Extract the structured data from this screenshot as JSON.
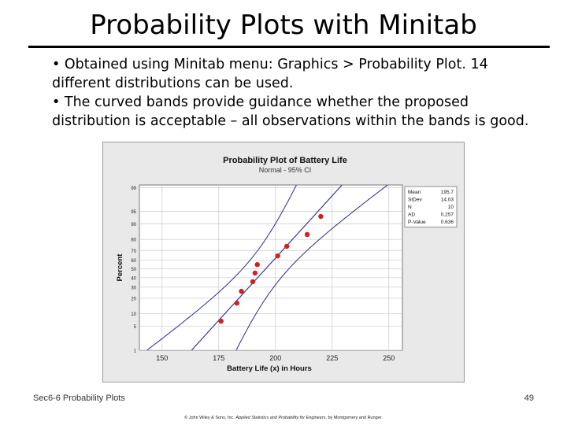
{
  "slide": {
    "title": "Probability Plots with Minitab",
    "bullets": [
      "• Obtained using Minitab menu:  Graphics > Probability Plot.  14 different distributions can be used.",
      "• The curved bands provide guidance whether the proposed distribution is acceptable – all observations within the bands is good."
    ],
    "footer_left": "Sec6-6 Probability Plots",
    "page_number": "49",
    "copyright_prefix": "© John Wiley & Sons, Inc.  ",
    "copyright_book": "Applied Statistics and Probability for Engineers",
    "copyright_suffix": ", by Montgomery and Runger."
  },
  "chart_data": {
    "type": "scatter",
    "title": "Probability Plot of Battery Life",
    "subtitle": "Normal - 95% CI",
    "xlabel": "Battery Life (x) in Hours",
    "ylabel": "Percent",
    "xlim": [
      140,
      256
    ],
    "x_ticks": [
      150,
      175,
      200,
      225,
      250
    ],
    "y_ticks": [
      1,
      5,
      10,
      20,
      30,
      40,
      50,
      60,
      70,
      80,
      90,
      95,
      99
    ],
    "y_scale": "normal-probability",
    "points": [
      {
        "x": 176,
        "y": 6.7
      },
      {
        "x": 183,
        "y": 16.3
      },
      {
        "x": 185,
        "y": 26
      },
      {
        "x": 190,
        "y": 35.6
      },
      {
        "x": 191,
        "y": 45.2
      },
      {
        "x": 192,
        "y": 54.8
      },
      {
        "x": 201,
        "y": 64.4
      },
      {
        "x": 205,
        "y": 74
      },
      {
        "x": 214,
        "y": 83.7
      },
      {
        "x": 220,
        "y": 93.3
      }
    ],
    "stats": [
      {
        "label": "Mean",
        "value": "195.7"
      },
      {
        "label": "StDev",
        "value": "14.03"
      },
      {
        "label": "N",
        "value": "10"
      },
      {
        "label": "AD",
        "value": "0.257"
      },
      {
        "label": "P-Value",
        "value": "0.636"
      }
    ],
    "fit": {
      "mean": 195.7,
      "stdev": 14.03,
      "n": 10
    },
    "colors": {
      "points": "#d42020",
      "lines": "#2a2a8a",
      "plot_bg": "#ffffff",
      "panel_bg": "#e9e9e9"
    }
  }
}
